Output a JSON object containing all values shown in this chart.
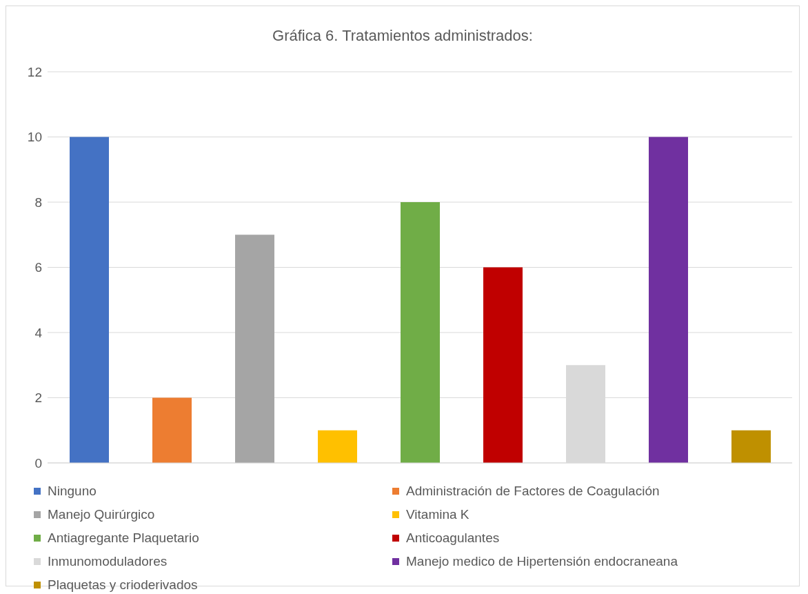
{
  "chart_data": {
    "type": "bar",
    "title": "Gráfica 6. Tratamientos administrados:",
    "categories": [
      null
    ],
    "series": [
      {
        "name": "Ninguno",
        "color": "#4472c4",
        "values": [
          10
        ]
      },
      {
        "name": "Administración de Factores de Coagulación",
        "color": "#ed7d31",
        "values": [
          2
        ]
      },
      {
        "name": "Manejo Quirúrgico",
        "color": "#a5a5a5",
        "values": [
          7
        ]
      },
      {
        "name": "Vitamina K",
        "color": "#ffc000",
        "values": [
          1
        ]
      },
      {
        "name": "Antiagregante Plaquetario",
        "color": "#70ad47",
        "values": [
          8
        ]
      },
      {
        "name": "Anticoagulantes",
        "color": "#c00000",
        "values": [
          6
        ]
      },
      {
        "name": "Inmunomoduladores",
        "color": "#d9d9d9",
        "values": [
          3
        ]
      },
      {
        "name": "Manejo medico de Hipertensión endocraneana",
        "color": "#7030a0",
        "values": [
          10
        ]
      },
      {
        "name": "Plaquetas y crioderivados",
        "color": "#bf9000",
        "values": [
          1
        ]
      }
    ],
    "ylim": [
      0,
      12
    ],
    "yticks": [
      0,
      2,
      4,
      6,
      8,
      10,
      12
    ],
    "grid": "y",
    "legend": "bottom"
  }
}
